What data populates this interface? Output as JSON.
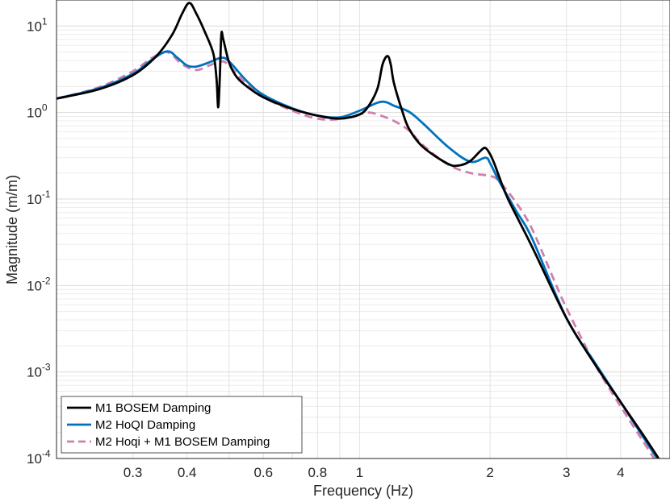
{
  "chart_data": {
    "type": "line",
    "title": "",
    "xlabel": "Frequency (Hz)",
    "ylabel": "Magnitude (m/m)",
    "xscale": "log",
    "yscale": "log",
    "xlim": [
      0.2,
      5.2
    ],
    "ylim": [
      0.0001,
      20
    ],
    "xticks": [
      0.3,
      0.4,
      0.6,
      0.8,
      1,
      2,
      3,
      4
    ],
    "xtick_labels": [
      "0.3",
      "0.4",
      "0.6",
      "0.8",
      "1",
      "2",
      "3",
      "4"
    ],
    "yticks": [
      {
        "value": 10,
        "base": "10",
        "exp": "1"
      },
      {
        "value": 1,
        "base": "10",
        "exp": "0"
      },
      {
        "value": 0.1,
        "base": "10",
        "exp": "-1"
      },
      {
        "value": 0.01,
        "base": "10",
        "exp": "-2"
      },
      {
        "value": 0.001,
        "base": "10",
        "exp": "-3"
      },
      {
        "value": 0.0001,
        "base": "10",
        "exp": "-4"
      }
    ],
    "grid": true,
    "legend_position": "bottom-left",
    "series": [
      {
        "name": "M1 BOSEM Damping",
        "color": "#000000",
        "style": "solid",
        "x": [
          0.2,
          0.25,
          0.3,
          0.34,
          0.37,
          0.39,
          0.405,
          0.42,
          0.44,
          0.46,
          0.468,
          0.472,
          0.476,
          0.48,
          0.485,
          0.5,
          0.52,
          0.55,
          0.6,
          0.7,
          0.8,
          0.9,
          1.0,
          1.05,
          1.1,
          1.13,
          1.16,
          1.18,
          1.2,
          1.25,
          1.3,
          1.4,
          1.6,
          1.7,
          1.8,
          1.9,
          1.95,
          2.0,
          2.05,
          2.1,
          2.2,
          2.5,
          3.0,
          3.5,
          4.0,
          4.5,
          5.0
        ],
        "y": [
          1.45,
          1.85,
          2.7,
          4.5,
          8.0,
          14.0,
          18.5,
          14.0,
          8.5,
          4.8,
          2.4,
          1.15,
          2.5,
          8.0,
          7.0,
          3.8,
          2.6,
          2.0,
          1.5,
          1.1,
          0.92,
          0.85,
          0.95,
          1.2,
          1.9,
          3.6,
          4.5,
          3.6,
          2.2,
          1.1,
          0.65,
          0.4,
          0.255,
          0.245,
          0.275,
          0.36,
          0.39,
          0.33,
          0.25,
          0.18,
          0.1,
          0.028,
          0.0042,
          0.0012,
          0.00045,
          0.00019,
          8.5e-05
        ]
      },
      {
        "name": "M2 HoQI Damping",
        "color": "#0072BD",
        "style": "solid",
        "x": [
          0.2,
          0.25,
          0.3,
          0.33,
          0.36,
          0.38,
          0.4,
          0.42,
          0.45,
          0.48,
          0.5,
          0.55,
          0.6,
          0.7,
          0.8,
          0.9,
          1.0,
          1.1,
          1.15,
          1.2,
          1.3,
          1.4,
          1.6,
          1.8,
          1.95,
          2.0,
          2.1,
          2.3,
          2.5,
          3.0,
          3.5,
          4.0,
          4.5,
          5.0
        ],
        "y": [
          1.45,
          1.9,
          2.8,
          4.0,
          5.1,
          4.3,
          3.5,
          3.4,
          3.8,
          4.3,
          3.9,
          2.3,
          1.6,
          1.12,
          0.92,
          0.88,
          1.05,
          1.3,
          1.32,
          1.2,
          1.02,
          0.75,
          0.4,
          0.27,
          0.3,
          0.26,
          0.16,
          0.072,
          0.035,
          0.0042,
          0.00125,
          0.00045,
          0.00018,
          8e-05
        ]
      },
      {
        "name": "M2 Hoqi + M1 BOSEM Damping",
        "color": "#D07FAE",
        "style": "dashed",
        "x": [
          0.2,
          0.25,
          0.3,
          0.33,
          0.355,
          0.37,
          0.39,
          0.42,
          0.45,
          0.48,
          0.5,
          0.55,
          0.6,
          0.7,
          0.8,
          0.9,
          1.0,
          1.05,
          1.1,
          1.2,
          1.3,
          1.4,
          1.6,
          1.8,
          2.0,
          2.1,
          2.3,
          2.5,
          2.8,
          3.0,
          3.5,
          4.0,
          4.5,
          5.0
        ],
        "y": [
          1.45,
          1.95,
          3.0,
          4.2,
          5.0,
          4.6,
          3.6,
          3.1,
          3.5,
          3.9,
          3.5,
          2.1,
          1.5,
          1.05,
          0.85,
          0.84,
          0.95,
          1.0,
          0.95,
          0.8,
          0.62,
          0.42,
          0.25,
          0.2,
          0.185,
          0.16,
          0.09,
          0.045,
          0.012,
          0.0055,
          0.0012,
          0.0004,
          0.00016,
          7e-05
        ]
      }
    ]
  }
}
